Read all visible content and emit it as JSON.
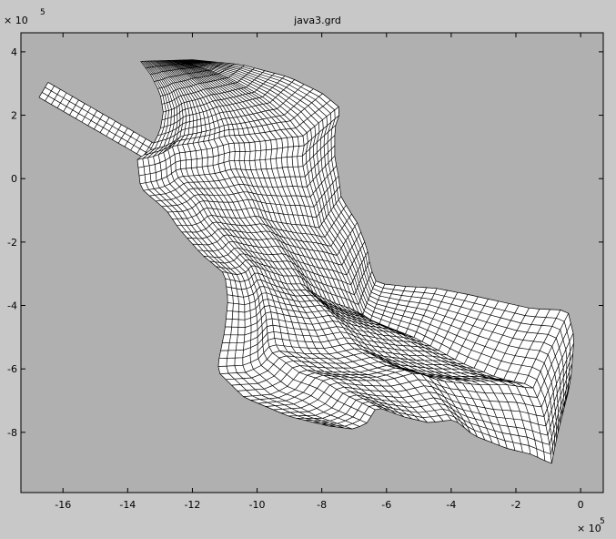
{
  "window": {
    "background": "#c8c8c8"
  },
  "chart_data": {
    "type": "mesh",
    "title": "java3.grd",
    "xlabel": "",
    "ylabel": "",
    "x_multiplier": "× 10",
    "y_multiplier": "× 10",
    "multiplier_exponent": "5",
    "xlim": [
      -17.3,
      0.7
    ],
    "ylim": [
      -9.9,
      4.6
    ],
    "xticks": [
      -16,
      -14,
      -12,
      -10,
      -8,
      -6,
      -4,
      -2,
      0
    ],
    "yticks": [
      -8,
      -6,
      -4,
      -2,
      0,
      2,
      4
    ],
    "grid": false,
    "colors": {
      "plot_background": "#b0b0b0",
      "mesh_fill": "#ffffff",
      "mesh_lines": "#000000",
      "figure_background": "#c8c8c8"
    },
    "mesh": {
      "description_units": "data units ×10^5",
      "main_body": {
        "left_boundary": [
          [
            -13.6,
            3.7
          ],
          [
            -13.3,
            3.3
          ],
          [
            -13.0,
            2.7
          ],
          [
            -12.9,
            2.1
          ],
          [
            -13.0,
            1.5
          ],
          [
            -13.3,
            0.9
          ],
          [
            -13.7,
            0.6
          ],
          [
            -13.6,
            -0.3
          ],
          [
            -12.8,
            -1.0
          ],
          [
            -12.4,
            -1.6
          ],
          [
            -11.7,
            -2.4
          ],
          [
            -11.0,
            -3.0
          ],
          [
            -10.9,
            -3.8
          ],
          [
            -11.0,
            -4.8
          ],
          [
            -11.2,
            -5.8
          ],
          [
            -11.2,
            -6.1
          ],
          [
            -10.4,
            -6.9
          ],
          [
            -9.0,
            -7.5
          ],
          [
            -7.8,
            -7.8
          ]
        ],
        "right_boundary": [
          [
            -12.0,
            3.75
          ],
          [
            -10.5,
            3.6
          ],
          [
            -9.0,
            3.2
          ],
          [
            -8.0,
            2.7
          ],
          [
            -7.4,
            2.2
          ],
          [
            -7.6,
            1.6
          ],
          [
            -7.6,
            0.6
          ],
          [
            -7.5,
            0.2
          ],
          [
            -7.4,
            -0.6
          ],
          [
            -6.9,
            -1.4
          ],
          [
            -6.6,
            -2.2
          ],
          [
            -6.5,
            -2.8
          ],
          [
            -6.3,
            -3.3
          ],
          [
            -5.4,
            -3.4
          ],
          [
            -4.5,
            -3.45
          ],
          [
            -3.5,
            -3.65
          ],
          [
            -1.5,
            -4.1
          ],
          [
            -0.4,
            -4.15
          ],
          [
            -0.2,
            -5.0
          ],
          [
            -0.3,
            -6.3
          ],
          [
            -0.4,
            -6.8
          ]
        ],
        "bottom_boundary": [
          [
            -7.8,
            -7.8
          ],
          [
            -7.0,
            -7.9
          ],
          [
            -6.6,
            -7.7
          ],
          [
            -6.3,
            -7.2
          ],
          [
            -5.5,
            -7.5
          ],
          [
            -4.7,
            -7.7
          ],
          [
            -3.9,
            -7.6
          ],
          [
            -3.3,
            -8.1
          ],
          [
            -2.3,
            -8.5
          ],
          [
            -1.5,
            -8.7
          ],
          [
            -0.9,
            -9.0
          ],
          [
            -0.7,
            -8.0
          ],
          [
            -0.4,
            -6.8
          ]
        ],
        "approx_rows": 60,
        "approx_columns": 40
      },
      "channel_arm": {
        "description": "narrow channel extending to the upper left",
        "start": [
          -16.6,
          2.8
        ],
        "end": [
          -13.2,
          0.8
        ],
        "width": 0.55,
        "approx_cells_along": 18,
        "approx_cells_across": 3
      }
    }
  }
}
